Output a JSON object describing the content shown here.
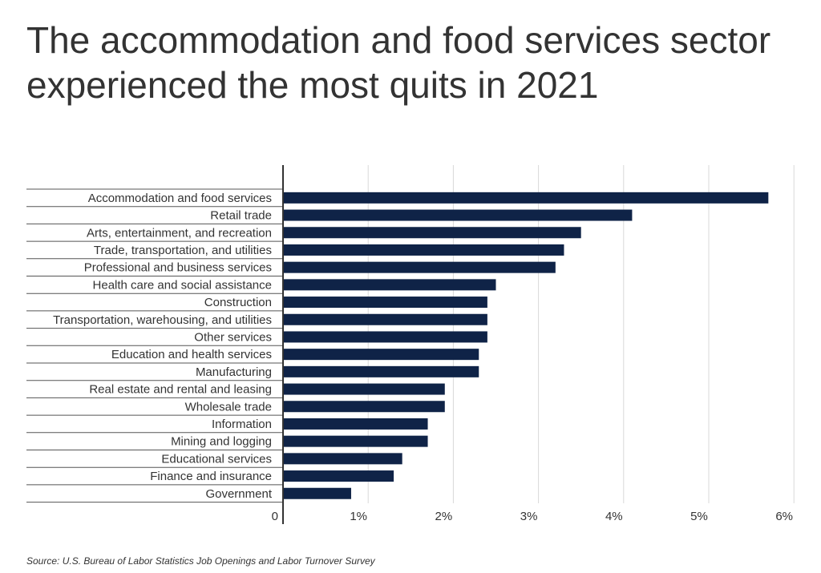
{
  "title": "The accommodation and food services sector experienced the most quits in 2021",
  "source": "Source:  U.S. Bureau of Labor Statistics Job Openings and Labor Turnover Survey",
  "colors": {
    "bar": "#0f2347",
    "grid": "#d9d9d9",
    "axis": "#333333",
    "text": "#333333"
  },
  "chart_data": {
    "type": "bar",
    "orientation": "horizontal",
    "categories": [
      "Accommodation and food services",
      "Retail trade",
      "Arts, entertainment, and recreation",
      "Trade, transportation, and utilities",
      "Professional and business services",
      "Health care and social assistance",
      "Construction",
      "Transportation, warehousing, and utilities",
      "Other services",
      "Education and health services",
      "Manufacturing",
      "Real estate and rental and leasing",
      "Wholesale trade",
      "Information",
      "Mining and logging",
      "Educational services",
      "Finance and insurance",
      "Government"
    ],
    "values": [
      5.7,
      4.1,
      3.5,
      3.3,
      3.2,
      2.5,
      2.4,
      2.4,
      2.4,
      2.3,
      2.3,
      1.9,
      1.9,
      1.7,
      1.7,
      1.4,
      1.3,
      0.8
    ],
    "xlim": [
      0,
      6
    ],
    "ticks": [
      0,
      1,
      2,
      3,
      4,
      5,
      6
    ],
    "tick_labels": [
      "0",
      "1%",
      "2%",
      "3%",
      "4%",
      "5%",
      "6%"
    ],
    "grid": true,
    "legend": "none"
  }
}
